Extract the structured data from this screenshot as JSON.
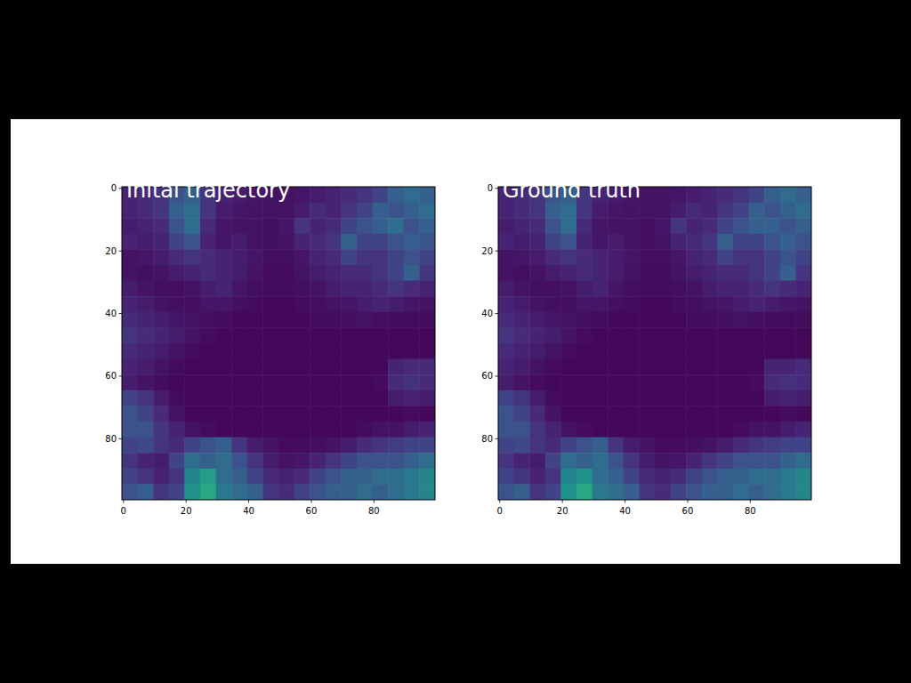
{
  "chart_data": [
    {
      "type": "heatmap",
      "title": "Inital trajectory",
      "color": "viridis",
      "color_range": [
        0,
        1
      ],
      "xlim": [
        -0.5,
        99.5
      ],
      "ylim": [
        99.5,
        -0.5
      ],
      "xticks": [
        0,
        20,
        40,
        60,
        80
      ],
      "yticks": [
        0,
        20,
        40,
        60,
        80
      ],
      "cells": [
        [
          0.1,
          0.12,
          0.15,
          0.25,
          0.3,
          0.15,
          0.1,
          0.08,
          0.06,
          0.05,
          0.05,
          0.06,
          0.08,
          0.1,
          0.12,
          0.15,
          0.2,
          0.3,
          0.35,
          0.3
        ],
        [
          0.1,
          0.12,
          0.15,
          0.3,
          0.35,
          0.15,
          0.08,
          0.06,
          0.05,
          0.05,
          0.05,
          0.08,
          0.12,
          0.1,
          0.15,
          0.2,
          0.3,
          0.25,
          0.3,
          0.35
        ],
        [
          0.08,
          0.1,
          0.12,
          0.25,
          0.35,
          0.12,
          0.06,
          0.05,
          0.05,
          0.04,
          0.06,
          0.15,
          0.1,
          0.12,
          0.2,
          0.25,
          0.3,
          0.35,
          0.25,
          0.3
        ],
        [
          0.1,
          0.08,
          0.1,
          0.2,
          0.25,
          0.1,
          0.06,
          0.08,
          0.05,
          0.04,
          0.05,
          0.1,
          0.12,
          0.15,
          0.3,
          0.2,
          0.2,
          0.25,
          0.3,
          0.25
        ],
        [
          0.05,
          0.06,
          0.08,
          0.12,
          0.15,
          0.12,
          0.1,
          0.08,
          0.06,
          0.04,
          0.04,
          0.06,
          0.1,
          0.12,
          0.2,
          0.15,
          0.15,
          0.2,
          0.25,
          0.2
        ],
        [
          0.05,
          0.04,
          0.05,
          0.08,
          0.1,
          0.12,
          0.1,
          0.08,
          0.05,
          0.03,
          0.03,
          0.05,
          0.08,
          0.1,
          0.12,
          0.12,
          0.15,
          0.2,
          0.3,
          0.15
        ],
        [
          0.08,
          0.05,
          0.04,
          0.04,
          0.05,
          0.08,
          0.1,
          0.06,
          0.04,
          0.03,
          0.03,
          0.04,
          0.05,
          0.08,
          0.1,
          0.1,
          0.12,
          0.15,
          0.12,
          0.1
        ],
        [
          0.1,
          0.08,
          0.05,
          0.04,
          0.04,
          0.06,
          0.06,
          0.04,
          0.03,
          0.02,
          0.02,
          0.03,
          0.04,
          0.05,
          0.06,
          0.08,
          0.1,
          0.08,
          0.06,
          0.05
        ],
        [
          0.12,
          0.1,
          0.08,
          0.06,
          0.05,
          0.04,
          0.03,
          0.02,
          0.02,
          0.02,
          0.02,
          0.02,
          0.03,
          0.03,
          0.04,
          0.05,
          0.04,
          0.03,
          0.03,
          0.03
        ],
        [
          0.15,
          0.12,
          0.1,
          0.08,
          0.05,
          0.03,
          0.02,
          0.02,
          0.02,
          0.02,
          0.02,
          0.02,
          0.02,
          0.02,
          0.02,
          0.02,
          0.02,
          0.02,
          0.02,
          0.02
        ],
        [
          0.12,
          0.1,
          0.08,
          0.05,
          0.03,
          0.02,
          0.02,
          0.02,
          0.02,
          0.02,
          0.02,
          0.02,
          0.02,
          0.02,
          0.02,
          0.02,
          0.02,
          0.02,
          0.02,
          0.02
        ],
        [
          0.1,
          0.08,
          0.05,
          0.03,
          0.02,
          0.02,
          0.02,
          0.02,
          0.02,
          0.02,
          0.02,
          0.02,
          0.02,
          0.02,
          0.02,
          0.02,
          0.02,
          0.1,
          0.12,
          0.12
        ],
        [
          0.08,
          0.05,
          0.03,
          0.02,
          0.02,
          0.02,
          0.02,
          0.02,
          0.02,
          0.02,
          0.02,
          0.02,
          0.02,
          0.02,
          0.02,
          0.02,
          0.03,
          0.12,
          0.14,
          0.12
        ],
        [
          0.2,
          0.15,
          0.08,
          0.03,
          0.02,
          0.02,
          0.02,
          0.02,
          0.02,
          0.02,
          0.02,
          0.02,
          0.02,
          0.02,
          0.02,
          0.02,
          0.02,
          0.08,
          0.1,
          0.08
        ],
        [
          0.25,
          0.2,
          0.12,
          0.05,
          0.02,
          0.02,
          0.02,
          0.02,
          0.02,
          0.02,
          0.02,
          0.02,
          0.02,
          0.02,
          0.02,
          0.02,
          0.02,
          0.02,
          0.03,
          0.02
        ],
        [
          0.25,
          0.25,
          0.15,
          0.1,
          0.05,
          0.03,
          0.02,
          0.02,
          0.02,
          0.02,
          0.02,
          0.02,
          0.02,
          0.02,
          0.02,
          0.03,
          0.05,
          0.05,
          0.08,
          0.1
        ],
        [
          0.2,
          0.22,
          0.15,
          0.12,
          0.2,
          0.25,
          0.3,
          0.15,
          0.08,
          0.05,
          0.03,
          0.03,
          0.04,
          0.05,
          0.08,
          0.12,
          0.15,
          0.18,
          0.2,
          0.2
        ],
        [
          0.15,
          0.1,
          0.08,
          0.2,
          0.35,
          0.3,
          0.35,
          0.25,
          0.15,
          0.08,
          0.05,
          0.06,
          0.1,
          0.15,
          0.2,
          0.25,
          0.25,
          0.25,
          0.3,
          0.35
        ],
        [
          0.2,
          0.15,
          0.1,
          0.15,
          0.45,
          0.55,
          0.35,
          0.3,
          0.2,
          0.12,
          0.1,
          0.12,
          0.2,
          0.25,
          0.3,
          0.3,
          0.35,
          0.35,
          0.4,
          0.45
        ],
        [
          0.25,
          0.3,
          0.15,
          0.2,
          0.5,
          0.6,
          0.4,
          0.35,
          0.3,
          0.15,
          0.12,
          0.2,
          0.25,
          0.3,
          0.3,
          0.35,
          0.3,
          0.35,
          0.4,
          0.45
        ]
      ]
    },
    {
      "type": "heatmap",
      "title": "Ground truth",
      "color": "viridis",
      "color_range": [
        0,
        1
      ],
      "xlim": [
        -0.5,
        99.5
      ],
      "ylim": [
        99.5,
        -0.5
      ],
      "xticks": [
        0,
        20,
        40,
        60,
        80
      ],
      "yticks": [
        0,
        20,
        40,
        60,
        80
      ],
      "cells": [
        [
          0.1,
          0.12,
          0.15,
          0.25,
          0.3,
          0.15,
          0.1,
          0.08,
          0.06,
          0.05,
          0.05,
          0.06,
          0.08,
          0.1,
          0.12,
          0.15,
          0.2,
          0.3,
          0.35,
          0.3
        ],
        [
          0.1,
          0.12,
          0.15,
          0.3,
          0.35,
          0.15,
          0.08,
          0.06,
          0.05,
          0.05,
          0.05,
          0.08,
          0.12,
          0.1,
          0.15,
          0.2,
          0.3,
          0.25,
          0.3,
          0.35
        ],
        [
          0.08,
          0.1,
          0.12,
          0.25,
          0.35,
          0.12,
          0.06,
          0.05,
          0.05,
          0.04,
          0.06,
          0.15,
          0.1,
          0.12,
          0.2,
          0.25,
          0.3,
          0.3,
          0.25,
          0.3
        ],
        [
          0.1,
          0.08,
          0.1,
          0.2,
          0.25,
          0.1,
          0.06,
          0.08,
          0.05,
          0.04,
          0.05,
          0.1,
          0.12,
          0.15,
          0.3,
          0.2,
          0.2,
          0.25,
          0.3,
          0.25
        ],
        [
          0.05,
          0.06,
          0.08,
          0.12,
          0.15,
          0.12,
          0.1,
          0.08,
          0.06,
          0.04,
          0.04,
          0.06,
          0.1,
          0.12,
          0.2,
          0.15,
          0.15,
          0.2,
          0.25,
          0.2
        ],
        [
          0.05,
          0.04,
          0.05,
          0.08,
          0.1,
          0.12,
          0.1,
          0.08,
          0.05,
          0.03,
          0.03,
          0.05,
          0.08,
          0.1,
          0.12,
          0.12,
          0.15,
          0.2,
          0.3,
          0.15
        ],
        [
          0.08,
          0.05,
          0.04,
          0.04,
          0.05,
          0.08,
          0.1,
          0.06,
          0.04,
          0.03,
          0.03,
          0.04,
          0.05,
          0.08,
          0.1,
          0.1,
          0.12,
          0.15,
          0.12,
          0.1
        ],
        [
          0.1,
          0.08,
          0.05,
          0.04,
          0.04,
          0.06,
          0.06,
          0.04,
          0.03,
          0.02,
          0.02,
          0.03,
          0.04,
          0.05,
          0.06,
          0.08,
          0.1,
          0.08,
          0.06,
          0.05
        ],
        [
          0.12,
          0.1,
          0.08,
          0.06,
          0.05,
          0.04,
          0.03,
          0.02,
          0.02,
          0.02,
          0.02,
          0.02,
          0.03,
          0.03,
          0.04,
          0.05,
          0.04,
          0.03,
          0.03,
          0.03
        ],
        [
          0.15,
          0.12,
          0.1,
          0.08,
          0.05,
          0.03,
          0.02,
          0.02,
          0.02,
          0.02,
          0.02,
          0.02,
          0.02,
          0.02,
          0.02,
          0.02,
          0.02,
          0.02,
          0.02,
          0.02
        ],
        [
          0.12,
          0.1,
          0.08,
          0.05,
          0.03,
          0.02,
          0.02,
          0.02,
          0.02,
          0.02,
          0.02,
          0.02,
          0.02,
          0.02,
          0.02,
          0.02,
          0.02,
          0.02,
          0.02,
          0.02
        ],
        [
          0.1,
          0.08,
          0.05,
          0.03,
          0.02,
          0.02,
          0.02,
          0.02,
          0.02,
          0.02,
          0.02,
          0.02,
          0.02,
          0.02,
          0.02,
          0.02,
          0.02,
          0.1,
          0.1,
          0.12
        ],
        [
          0.08,
          0.05,
          0.03,
          0.02,
          0.02,
          0.02,
          0.02,
          0.02,
          0.02,
          0.02,
          0.02,
          0.02,
          0.02,
          0.02,
          0.02,
          0.02,
          0.03,
          0.12,
          0.14,
          0.12
        ],
        [
          0.2,
          0.15,
          0.08,
          0.03,
          0.02,
          0.02,
          0.02,
          0.02,
          0.02,
          0.02,
          0.02,
          0.02,
          0.02,
          0.02,
          0.02,
          0.02,
          0.02,
          0.08,
          0.1,
          0.08
        ],
        [
          0.25,
          0.2,
          0.12,
          0.05,
          0.02,
          0.02,
          0.02,
          0.02,
          0.02,
          0.02,
          0.02,
          0.02,
          0.02,
          0.02,
          0.02,
          0.02,
          0.02,
          0.02,
          0.03,
          0.02
        ],
        [
          0.25,
          0.25,
          0.15,
          0.1,
          0.05,
          0.03,
          0.02,
          0.02,
          0.02,
          0.02,
          0.02,
          0.02,
          0.02,
          0.02,
          0.02,
          0.03,
          0.05,
          0.05,
          0.08,
          0.1
        ],
        [
          0.2,
          0.22,
          0.15,
          0.12,
          0.2,
          0.25,
          0.3,
          0.15,
          0.08,
          0.05,
          0.03,
          0.03,
          0.04,
          0.05,
          0.08,
          0.12,
          0.15,
          0.18,
          0.2,
          0.2
        ],
        [
          0.15,
          0.1,
          0.08,
          0.2,
          0.35,
          0.3,
          0.35,
          0.25,
          0.15,
          0.08,
          0.05,
          0.06,
          0.1,
          0.15,
          0.2,
          0.25,
          0.25,
          0.25,
          0.3,
          0.35
        ],
        [
          0.2,
          0.15,
          0.1,
          0.15,
          0.45,
          0.5,
          0.35,
          0.3,
          0.2,
          0.12,
          0.1,
          0.12,
          0.2,
          0.25,
          0.3,
          0.3,
          0.35,
          0.35,
          0.4,
          0.45
        ],
        [
          0.25,
          0.3,
          0.15,
          0.2,
          0.5,
          0.6,
          0.4,
          0.35,
          0.3,
          0.15,
          0.12,
          0.2,
          0.25,
          0.3,
          0.3,
          0.35,
          0.3,
          0.35,
          0.4,
          0.45
        ]
      ]
    }
  ]
}
